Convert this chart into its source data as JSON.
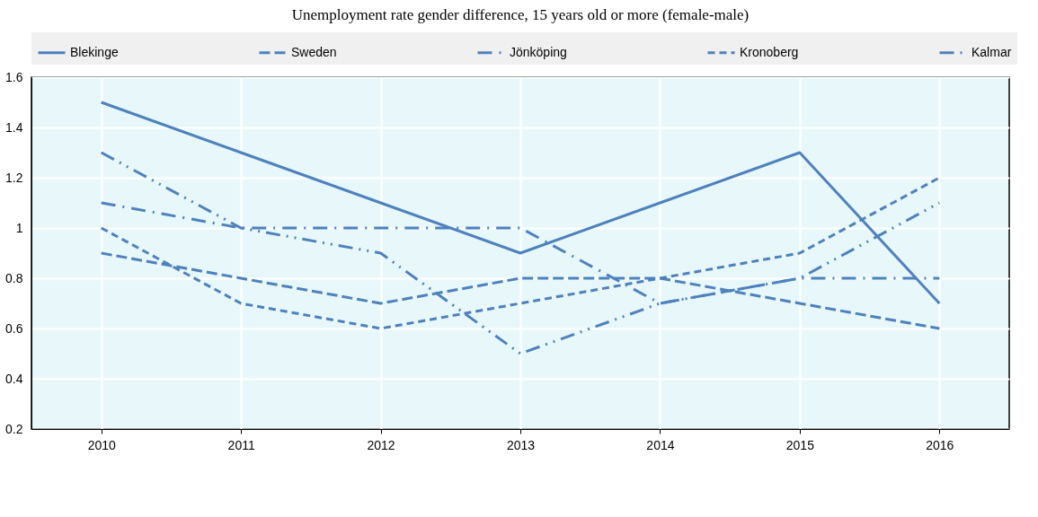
{
  "chart_data": {
    "type": "line",
    "title": "Unemployment rate gender difference, 15 years old or more (female-male)",
    "categories": [
      "2010",
      "2011",
      "2012",
      "2013",
      "2014",
      "2015",
      "2016"
    ],
    "series": [
      {
        "name": "Blekinge",
        "color": "#4f81bd",
        "line_style": "solid",
        "values": [
          1.5,
          1.3,
          1.1,
          0.9,
          1.1,
          1.3,
          0.7
        ]
      },
      {
        "name": "Sweden",
        "color": "#4f81bd",
        "line_style": "dashed",
        "values": [
          0.9,
          0.8,
          0.7,
          0.8,
          0.8,
          0.7,
          0.6
        ]
      },
      {
        "name": "Jönköping",
        "color": "#4f81bd",
        "line_style": "dashdot",
        "values": [
          1.1,
          1.0,
          1.0,
          1.0,
          0.7,
          0.8,
          0.8
        ]
      },
      {
        "name": "Kronoberg",
        "color": "#4f81bd",
        "line_style": "shortdash",
        "values": [
          1.0,
          0.7,
          0.6,
          0.7,
          0.8,
          0.9,
          1.2
        ]
      },
      {
        "name": "Kalmar",
        "color": "#4f81bd",
        "line_style": "dashdotdot",
        "values": [
          1.3,
          1.0,
          0.9,
          0.5,
          0.7,
          0.8,
          1.1
        ]
      }
    ],
    "ylim": [
      0.2,
      1.6
    ],
    "yticks": [
      0.2,
      0.4,
      0.6,
      0.8,
      1,
      1.2,
      1.4,
      1.6
    ],
    "grid": true,
    "legend": "top",
    "marker": "none"
  }
}
